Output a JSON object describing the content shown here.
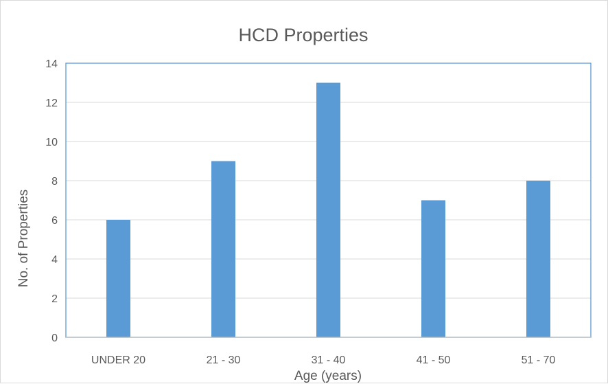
{
  "chart_data": {
    "type": "bar",
    "title": "HCD Properties",
    "xlabel": "Age (years)",
    "ylabel": "No. of Properties",
    "categories": [
      "UNDER 20",
      "21 - 30",
      "31 - 40",
      "41 - 50",
      "51 - 70"
    ],
    "values": [
      6,
      9,
      13,
      7,
      8
    ],
    "ylim": [
      0,
      14
    ],
    "yticks": [
      0,
      2,
      4,
      6,
      8,
      10,
      12,
      14
    ],
    "grid": true,
    "legend": "none",
    "colors": {
      "bar": "#5b9bd5",
      "gridline": "#d9d9d9",
      "plot_border": "#5b9bd5",
      "axis_line": "#bfbfbf"
    }
  }
}
